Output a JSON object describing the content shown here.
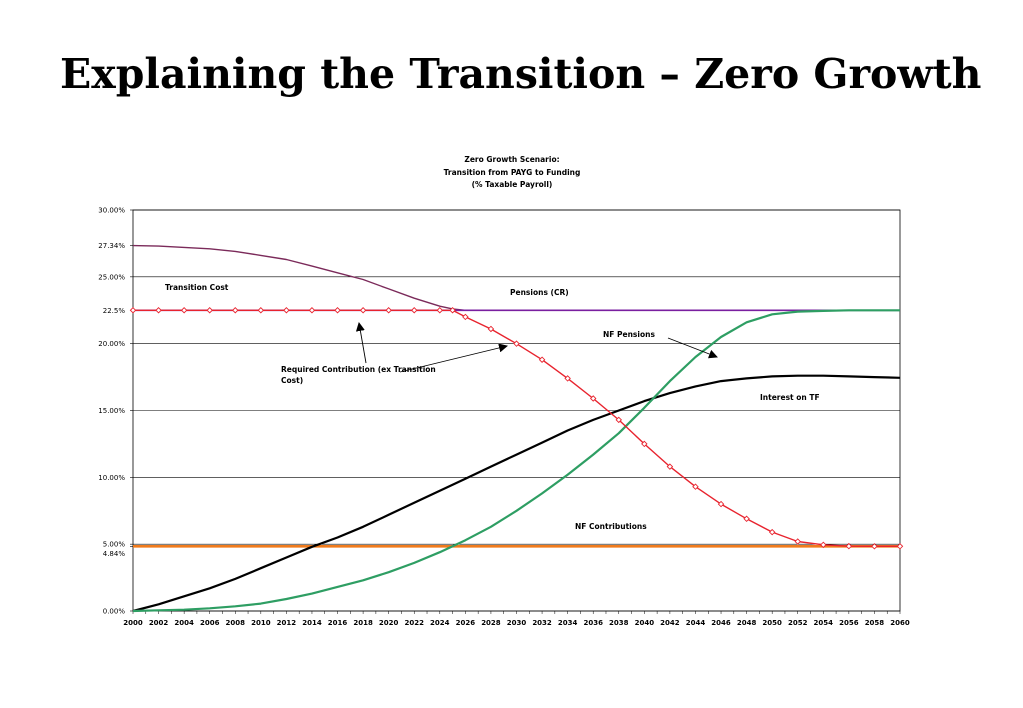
{
  "slide": {
    "title": "Explaining the Transition – Zero Growth"
  },
  "chart_data": {
    "type": "line",
    "title_lines": [
      "Zero Growth  Scenario:",
      "Transition from PAYG to Funding",
      "(% Taxable Payroll)"
    ],
    "xlim": [
      2000,
      2060
    ],
    "ylim": [
      0,
      30
    ],
    "y_gridlines": [
      0,
      5,
      10,
      15,
      20,
      25,
      30
    ],
    "x_ticks": [
      2000,
      2002,
      2004,
      2006,
      2008,
      2010,
      2012,
      2014,
      2016,
      2018,
      2020,
      2022,
      2024,
      2026,
      2028,
      2030,
      2032,
      2034,
      2036,
      2038,
      2040,
      2042,
      2044,
      2046,
      2048,
      2050,
      2052,
      2054,
      2056,
      2058,
      2060
    ],
    "y_ticks": [
      {
        "value": 0,
        "label": "0.00%"
      },
      {
        "value": 4.84,
        "label": "4.84%"
      },
      {
        "value": 5,
        "label": "5.00%"
      },
      {
        "value": 10,
        "label": "10.00%"
      },
      {
        "value": 15,
        "label": "15.00%"
      },
      {
        "value": 20,
        "label": "20.00%"
      },
      {
        "value": 22.5,
        "label": "22.5%"
      },
      {
        "value": 25,
        "label": "25.00%"
      },
      {
        "value": 27.34,
        "label": "27.34%"
      },
      {
        "value": 30,
        "label": "30.00%"
      }
    ],
    "grid": true,
    "legend": "none",
    "series": [
      {
        "key": "required_contribution",
        "color": "#7b2a5a",
        "x": [
          2000,
          2002,
          2004,
          2006,
          2008,
          2010,
          2012,
          2014,
          2016,
          2018,
          2020,
          2022,
          2024,
          2025,
          2026
        ],
        "values": [
          27.34,
          27.3,
          27.2,
          27.1,
          26.9,
          26.6,
          26.3,
          25.8,
          25.3,
          24.8,
          24.1,
          23.4,
          22.8,
          22.6,
          22.5
        ]
      },
      {
        "key": "pensions_cr",
        "color": "#7a1fa0",
        "x": [
          2000,
          2060
        ],
        "values": [
          22.5,
          22.5
        ]
      },
      {
        "key": "transition_cost",
        "color": "#e8232e",
        "marker_color": "#e8232e",
        "x": [
          2000,
          2002,
          2004,
          2006,
          2008,
          2010,
          2012,
          2014,
          2016,
          2018,
          2020,
          2022,
          2024,
          2025,
          2026,
          2028,
          2030,
          2032,
          2034,
          2036,
          2038,
          2040,
          2042,
          2044,
          2046,
          2048,
          2050,
          2052,
          2054,
          2056,
          2058,
          2060
        ],
        "values": [
          22.5,
          22.5,
          22.5,
          22.5,
          22.5,
          22.5,
          22.5,
          22.5,
          22.5,
          22.5,
          22.5,
          22.5,
          22.5,
          22.5,
          22.0,
          21.1,
          20.0,
          18.8,
          17.4,
          15.9,
          14.3,
          12.5,
          10.8,
          9.3,
          8.0,
          6.9,
          5.9,
          5.2,
          4.95,
          4.85,
          4.84,
          4.84
        ]
      },
      {
        "key": "nf_pensions",
        "color": "#2e9e63",
        "x": [
          2000,
          2002,
          2004,
          2006,
          2008,
          2010,
          2012,
          2014,
          2016,
          2018,
          2020,
          2022,
          2024,
          2026,
          2028,
          2030,
          2032,
          2034,
          2036,
          2038,
          2040,
          2042,
          2044,
          2046,
          2048,
          2050,
          2052,
          2054,
          2056,
          2058,
          2060
        ],
        "values": [
          0,
          0.05,
          0.1,
          0.2,
          0.35,
          0.55,
          0.9,
          1.3,
          1.8,
          2.3,
          2.9,
          3.6,
          4.4,
          5.3,
          6.3,
          7.5,
          8.8,
          10.2,
          11.7,
          13.3,
          15.2,
          17.2,
          19.0,
          20.5,
          21.6,
          22.2,
          22.4,
          22.45,
          22.5,
          22.5,
          22.5
        ]
      },
      {
        "key": "interest_on_tf",
        "color": "#000000",
        "x": [
          2000,
          2002,
          2004,
          2006,
          2008,
          2010,
          2012,
          2014,
          2016,
          2018,
          2020,
          2022,
          2024,
          2026,
          2028,
          2030,
          2032,
          2034,
          2036,
          2038,
          2040,
          2042,
          2044,
          2046,
          2048,
          2050,
          2052,
          2054,
          2056,
          2058,
          2060
        ],
        "values": [
          0,
          0.5,
          1.1,
          1.7,
          2.4,
          3.2,
          4.0,
          4.8,
          5.5,
          6.3,
          7.2,
          8.1,
          9.0,
          9.9,
          10.8,
          11.7,
          12.6,
          13.5,
          14.3,
          15.0,
          15.7,
          16.3,
          16.8,
          17.2,
          17.4,
          17.55,
          17.6,
          17.6,
          17.55,
          17.5,
          17.45
        ]
      },
      {
        "key": "nf_contributions",
        "color": "#f07b1c",
        "x": [
          2000,
          2060
        ],
        "values": [
          4.84,
          4.84
        ]
      }
    ],
    "annotations": {
      "transition_cost": "Transition Cost",
      "pensions_cr": "Pensions (CR)",
      "nf_pensions": "NF Pensions",
      "required_contribution_line1": "Required Contribution (ex Transition",
      "required_contribution_line2": "Cost)",
      "interest_on_tf": "Interest on TF",
      "nf_contributions": "NF Contributions"
    }
  }
}
